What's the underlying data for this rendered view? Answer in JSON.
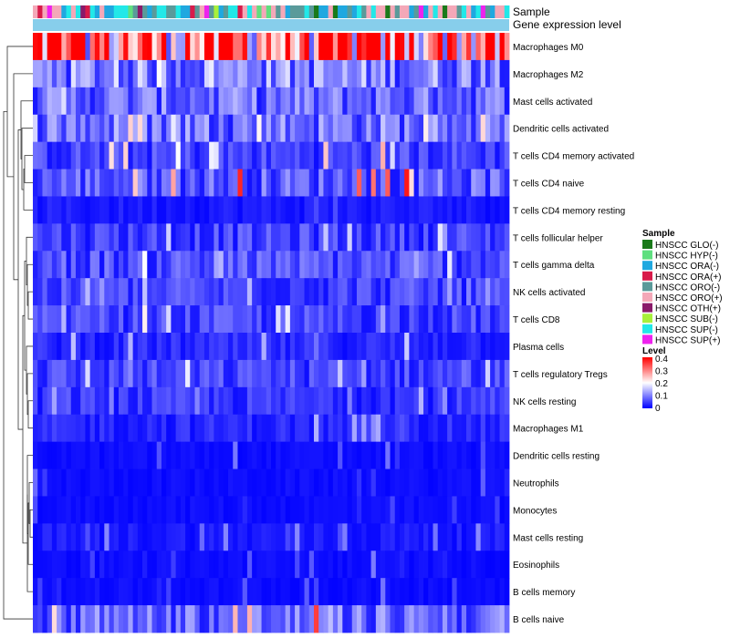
{
  "chart_data": {
    "type": "heatmap",
    "title": "",
    "annotation_tracks": [
      "Sample",
      "Gene expression level"
    ],
    "rows": [
      "Macrophages M0",
      "Macrophages M2",
      "Mast cells activated",
      "Dendritic cells activated",
      "T cells CD4 memory activated",
      "T cells CD4 naive",
      "T cells CD4 memory resting",
      "T cells follicular helper",
      "T cells gamma delta",
      "NK cells activated",
      "T cells CD8",
      "Plasma cells",
      "T cells regulatory  Tregs",
      "NK cells resting",
      "Macrophages M1",
      "Dendritic cells resting",
      "Neutrophils",
      "Monocytes",
      "Mast cells resting",
      "Eosinophils",
      "B cells memory",
      "B cells naive"
    ],
    "row_mean_levels": [
      0.3,
      0.1,
      0.08,
      0.09,
      0.05,
      0.07,
      0.02,
      0.05,
      0.06,
      0.05,
      0.05,
      0.03,
      0.05,
      0.04,
      0.03,
      0.01,
      0.01,
      0.01,
      0.02,
      0.01,
      0.01,
      0.08
    ],
    "row_max_levels": [
      0.4,
      0.22,
      0.2,
      0.25,
      0.28,
      0.4,
      0.15,
      0.2,
      0.2,
      0.2,
      0.22,
      0.18,
      0.2,
      0.18,
      0.15,
      0.1,
      0.12,
      0.08,
      0.12,
      0.1,
      0.1,
      0.38
    ],
    "n_samples": 100,
    "legend_sample": {
      "title": "Sample",
      "entries": [
        {
          "label": "HNSCC GLO(-)",
          "color": "#1a7a1a"
        },
        {
          "label": "HNSCC HYP(-)",
          "color": "#5fdf7f"
        },
        {
          "label": "HNSCC ORA(-)",
          "color": "#1fa8e0"
        },
        {
          "label": "HNSCC ORA(+)",
          "color": "#d81b4a"
        },
        {
          "label": "HNSCC ORO(-)",
          "color": "#5a9a9a"
        },
        {
          "label": "HNSCC ORO(+)",
          "color": "#f4a8b8"
        },
        {
          "label": "HNSCC OTH(+)",
          "color": "#8a1a6a"
        },
        {
          "label": "HNSCC SUB(-)",
          "color": "#a8f03a"
        },
        {
          "label": "HNSCC SUP(-)",
          "color": "#22e8e8"
        },
        {
          "label": "HNSCC SUP(+)",
          "color": "#ee22ee"
        }
      ]
    },
    "legend_level": {
      "title": "Level",
      "ticks": [
        "0.4",
        "0.3",
        "0.2",
        "0.1",
        "0"
      ],
      "tick_values": [
        0.4,
        0.3,
        0.2,
        0.1,
        0
      ],
      "range": [
        0,
        0.4
      ],
      "colors": {
        "low": "#0000ff",
        "mid": "#ffffff",
        "high": "#ff0000"
      }
    },
    "expression_track_color": "#87ceeb"
  }
}
